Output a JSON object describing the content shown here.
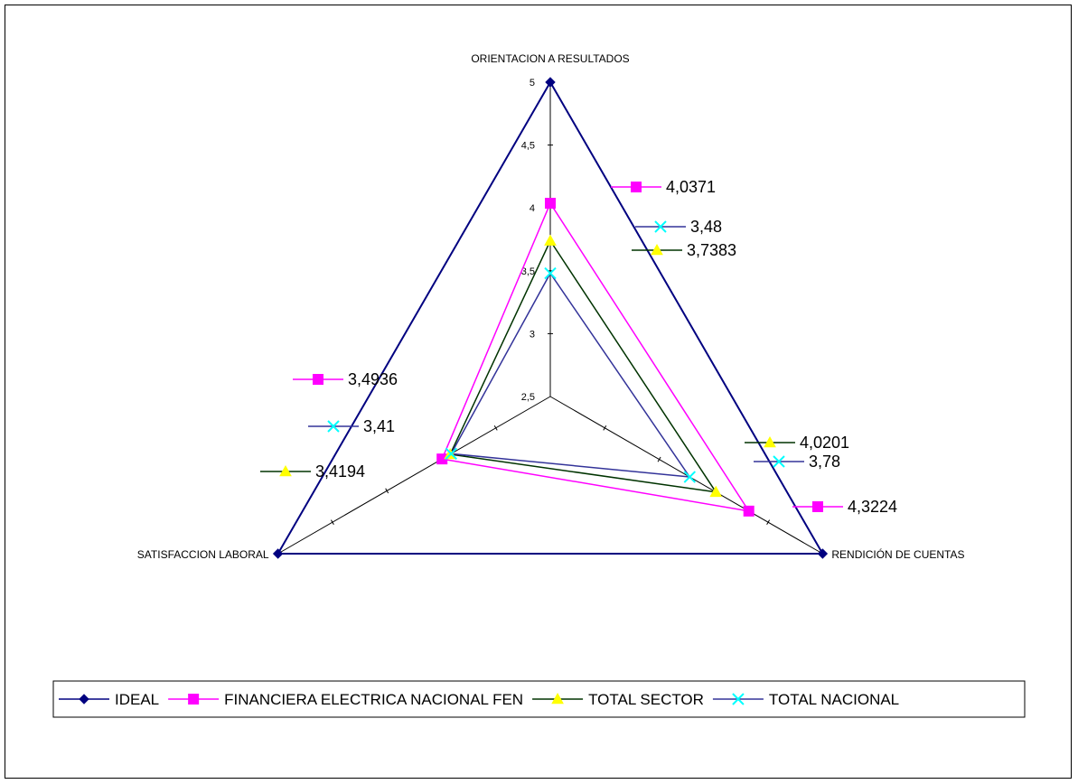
{
  "chart_data": {
    "type": "radar",
    "axes": [
      "ORIENTACION A RESULTADOS",
      "RENDICIÓN DE CUENTAS",
      "SATISFACCION LABORAL"
    ],
    "ticks": [
      "2,5",
      "3",
      "3,5",
      "4",
      "4,5",
      "5"
    ],
    "range": [
      2.5,
      5
    ],
    "series": [
      {
        "name": "IDEAL",
        "values": [
          5,
          5,
          5
        ],
        "labels": [],
        "color": "#000080",
        "markerColor": "#000080",
        "marker": "diamond"
      },
      {
        "name": "FINANCIERA ELECTRICA NACIONAL FEN",
        "values": [
          4.0371,
          4.3224,
          3.4936
        ],
        "labels": [
          "4,0371",
          "4,3224",
          "3,4936"
        ],
        "color": "#FF00FF",
        "markerColor": "#FF00FF",
        "marker": "square"
      },
      {
        "name": "TOTAL SECTOR",
        "values": [
          3.7383,
          4.0201,
          3.4194
        ],
        "labels": [
          "3,7383",
          "4,0201",
          "3,4194"
        ],
        "color": "#003300",
        "markerColor": "#FFFF00",
        "marker": "triangle"
      },
      {
        "name": "TOTAL NACIONAL",
        "values": [
          3.48,
          3.78,
          3.41
        ],
        "labels": [
          "3,48",
          "3,78",
          "3,41"
        ],
        "color": "#333399",
        "markerColor": "#00FFFF",
        "marker": "x"
      }
    ],
    "legend_position": "bottom",
    "grid": false
  }
}
